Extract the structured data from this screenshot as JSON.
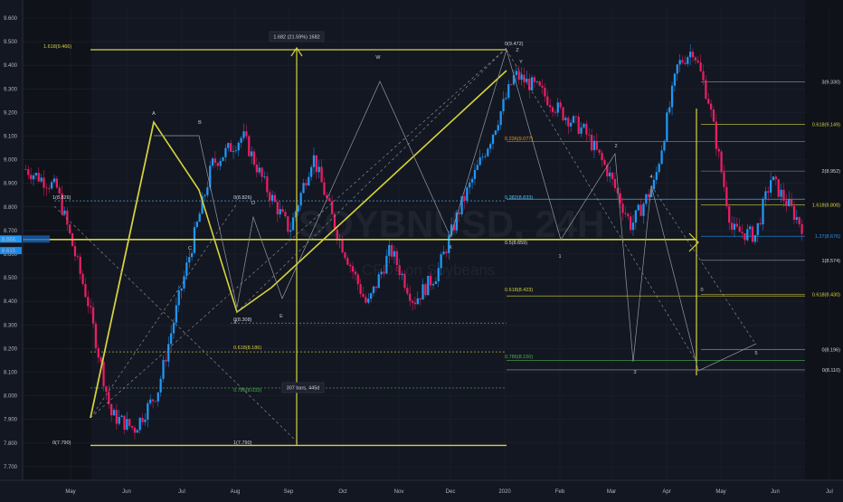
{
  "symbol_watermark": "SOYBNUSD, 24H",
  "subtitle_watermark": "CFDs on Soybeans",
  "colors": {
    "bg": "#131722",
    "bg_dark": "#0f1219",
    "up": "#2196f3",
    "down": "#e91e63",
    "accent": "#d4d23b",
    "grid": "#1e222d",
    "axis_text": "#b2b5be",
    "fib_gray": "#9598a1",
    "fib_green": "#4caf50"
  },
  "price_badges": [
    "8.664",
    "8.615"
  ],
  "measure_box_top": "1.682 (21.59%) 1682",
  "measure_box_bottom": "307 bars, 445d",
  "chart_data": {
    "type": "candlestick",
    "title": "SOYBNUSD, 24H",
    "subtitle": "CFDs on Soybeans",
    "y_axis": {
      "min": 7.65,
      "max": 9.68,
      "ticks": [
        "9.600",
        "9.500",
        "9.400",
        "9.300",
        "9.200",
        "9.100",
        "9.000",
        "8.900",
        "8.800",
        "8.700",
        "8.600",
        "8.500",
        "8.400",
        "8.300",
        "8.200",
        "8.100",
        "8.000",
        "7.900",
        "7.800",
        "7.700"
      ]
    },
    "x_axis": {
      "ticks": [
        "May",
        "Jun",
        "Jul",
        "Aug",
        "Sep",
        "Oct",
        "Nov",
        "Dec",
        "2020",
        "Feb",
        "Mar",
        "Apr",
        "May",
        "Jun",
        "Jul"
      ]
    },
    "price_path": [
      [
        0,
        8.96
      ],
      [
        0.04,
        8.88
      ],
      [
        0.08,
        8.4
      ],
      [
        0.11,
        7.92
      ],
      [
        0.14,
        7.86
      ],
      [
        0.17,
        8.02
      ],
      [
        0.2,
        8.45
      ],
      [
        0.24,
        8.98
      ],
      [
        0.28,
        9.1
      ],
      [
        0.31,
        8.88
      ],
      [
        0.34,
        8.7
      ],
      [
        0.37,
        9.02
      ],
      [
        0.4,
        8.7
      ],
      [
        0.44,
        8.38
      ],
      [
        0.47,
        8.62
      ],
      [
        0.5,
        8.4
      ],
      [
        0.53,
        8.52
      ],
      [
        0.56,
        8.8
      ],
      [
        0.6,
        9.1
      ],
      [
        0.63,
        9.36
      ],
      [
        0.66,
        9.3
      ],
      [
        0.69,
        9.2
      ],
      [
        0.72,
        9.12
      ],
      [
        0.75,
        8.95
      ],
      [
        0.78,
        8.72
      ],
      [
        0.81,
        8.9
      ],
      [
        0.84,
        9.4
      ],
      [
        0.86,
        9.47
      ],
      [
        0.88,
        9.25
      ],
      [
        0.91,
        8.7
      ],
      [
        0.94,
        8.68
      ],
      [
        0.96,
        8.92
      ],
      [
        1.0,
        8.72
      ]
    ],
    "fib_levels_left": [
      {
        "label": "1.618(9.466)",
        "value": 9.466
      },
      {
        "label": "1(8.826)",
        "value": 8.826
      },
      {
        "label": "0(7.790)",
        "value": 7.79
      },
      {
        "label": "1(7.790)",
        "value": 7.79
      }
    ],
    "fib_levels_mid": [
      {
        "label": "0(9.472)",
        "value": 9.472
      },
      {
        "label": "0(8.826)",
        "value": 8.826
      },
      {
        "label": "0.236(9.077)",
        "value": 9.077
      },
      {
        "label": "0.382(8.833)",
        "value": 8.833
      },
      {
        "label": "0.5(8.659)",
        "value": 8.659
      },
      {
        "label": "0.618(8.423)",
        "value": 8.423
      },
      {
        "label": "0.618(8.186)",
        "value": 8.186
      },
      {
        "label": "0.786(8.150)",
        "value": 8.15
      },
      {
        "label": "0.786(8.033)",
        "value": 8.033
      },
      {
        "label": "0(8.308)",
        "value": 8.308
      }
    ],
    "fib_levels_right": [
      {
        "label": "3(9.330)",
        "value": 9.33
      },
      {
        "label": "0.618(9.149)",
        "value": 9.149
      },
      {
        "label": "2(8.952)",
        "value": 8.952
      },
      {
        "label": "1.618(8.808)",
        "value": 8.808
      },
      {
        "label": "1.27(8.676)",
        "value": 8.676
      },
      {
        "label": "1(8.574)",
        "value": 8.574
      },
      {
        "label": "0.618(8.430)",
        "value": 8.43
      },
      {
        "label": "0(8.196)",
        "value": 8.196
      },
      {
        "label": "0(8.110)",
        "value": 8.11
      }
    ],
    "wave_labels": [
      "A",
      "B",
      "C",
      "D",
      "E",
      "X",
      "W",
      "X",
      "Y",
      "1",
      "2",
      "3",
      "4",
      "5",
      "Z",
      "0"
    ]
  }
}
